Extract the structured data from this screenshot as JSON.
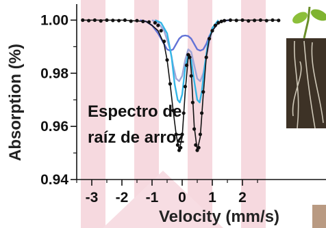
{
  "chart_data": {
    "type": "scatter",
    "xlabel": "Velocity (mm/s)",
    "ylabel": "Absorption (%)",
    "xlim": [
      -3.5,
      3.5
    ],
    "ylim": [
      0.94,
      1.005
    ],
    "x_ticks": [
      -3,
      -2,
      -1,
      0,
      1,
      2
    ],
    "y_ticks": [
      0.94,
      0.96,
      0.98,
      1.0
    ],
    "x_tick_labels": [
      "-3",
      "-2",
      "-1",
      "0",
      "1",
      "2"
    ],
    "y_tick_labels": [
      "0.94",
      "0.96",
      "0.98",
      "1.00"
    ],
    "annotation": [
      "Espectro de",
      "raíz de arroz"
    ],
    "legend": "none",
    "grid": false,
    "series": [
      {
        "kind": "points",
        "color": "#111111",
        "x": [
          -3.3,
          -3.1,
          -2.9,
          -2.7,
          -2.5,
          -2.3,
          -2.1,
          -1.9,
          -1.7,
          -1.5,
          -1.3,
          -1.1,
          -0.9,
          -0.8,
          -0.7,
          -0.6,
          -0.5,
          -0.4,
          -0.3,
          -0.2,
          -0.15,
          -0.1,
          -0.05,
          0.0,
          0.05,
          0.1,
          0.15,
          0.2,
          0.25,
          0.3,
          0.35,
          0.4,
          0.45,
          0.5,
          0.55,
          0.6,
          0.65,
          0.7,
          0.8,
          0.9,
          1.0,
          1.1,
          1.2,
          1.3,
          1.4,
          1.6,
          1.8,
          2.0,
          2.2,
          2.4,
          2.6,
          2.8,
          3.0,
          3.2
        ],
        "y": [
          1.0,
          0.9998,
          1.0,
          0.9997,
          1.0,
          0.9999,
          0.9998,
          1.0,
          0.9996,
          0.9998,
          0.9995,
          0.9993,
          0.999,
          0.998,
          0.996,
          0.992,
          0.985,
          0.976,
          0.966,
          0.957,
          0.953,
          0.951,
          0.952,
          0.957,
          0.965,
          0.975,
          0.983,
          0.987,
          0.986,
          0.979,
          0.969,
          0.959,
          0.953,
          0.951,
          0.952,
          0.957,
          0.965,
          0.973,
          0.986,
          0.993,
          0.996,
          0.998,
          0.999,
          0.9995,
          0.9998,
          1.0,
          0.9999,
          1.0,
          0.9997,
          0.9999,
          1.0,
          0.9998,
          1.0,
          0.9999
        ]
      },
      {
        "kind": "line",
        "color": "#6272d6",
        "x": [
          -1.4,
          -1.2,
          -1.0,
          -0.8,
          -0.6,
          -0.5,
          -0.4,
          -0.3,
          -0.2,
          -0.1,
          0.0,
          0.1,
          0.2,
          0.3,
          0.4,
          0.5,
          0.6,
          0.7,
          0.8,
          0.9,
          1.0,
          1.1,
          1.2,
          1.4,
          1.6
        ],
        "y": [
          1.0,
          0.9995,
          0.998,
          0.995,
          0.991,
          0.989,
          0.9885,
          0.989,
          0.991,
          0.993,
          0.994,
          0.9942,
          0.994,
          0.993,
          0.991,
          0.989,
          0.9885,
          0.989,
          0.991,
          0.994,
          0.996,
          0.998,
          0.999,
          0.9998,
          1.0
        ]
      },
      {
        "kind": "line",
        "color": "#9fa5d8",
        "x": [
          -1.0,
          -0.8,
          -0.6,
          -0.4,
          -0.3,
          -0.2,
          -0.1,
          0.0,
          0.1,
          0.2,
          0.3,
          0.4,
          0.5,
          0.6,
          0.7,
          0.8,
          0.9,
          1.0,
          1.2,
          1.4
        ],
        "y": [
          1.0,
          0.999,
          0.996,
          0.989,
          0.983,
          0.978,
          0.977,
          0.979,
          0.985,
          0.989,
          0.988,
          0.983,
          0.978,
          0.977,
          0.98,
          0.986,
          0.992,
          0.996,
          0.999,
          1.0
        ]
      },
      {
        "kind": "line",
        "color": "#35b6e6",
        "x": [
          -0.9,
          -0.7,
          -0.5,
          -0.35,
          -0.25,
          -0.15,
          -0.08,
          0.0,
          0.1,
          0.2,
          0.3,
          0.4,
          0.5,
          0.58,
          0.65,
          0.75,
          0.85,
          1.0,
          1.2
        ],
        "y": [
          1.0,
          0.999,
          0.995,
          0.986,
          0.976,
          0.97,
          0.969,
          0.972,
          0.982,
          0.987,
          0.985,
          0.977,
          0.97,
          0.969,
          0.973,
          0.983,
          0.991,
          0.997,
          1.0
        ]
      },
      {
        "kind": "line",
        "color": "#111111",
        "x": [
          -3.3,
          -2.0,
          -1.2,
          -1.0,
          -0.8,
          -0.6,
          -0.5,
          -0.4,
          -0.3,
          -0.2,
          -0.1,
          0.0,
          0.1,
          0.2,
          0.25,
          0.3,
          0.4,
          0.5,
          0.6,
          0.7,
          0.8,
          0.9,
          1.0,
          1.2,
          1.5,
          2.0,
          3.2
        ],
        "y": [
          1.0,
          1.0,
          0.9995,
          0.998,
          0.996,
          0.991,
          0.985,
          0.976,
          0.966,
          0.957,
          0.951,
          0.956,
          0.973,
          0.986,
          0.987,
          0.981,
          0.96,
          0.951,
          0.956,
          0.972,
          0.986,
          0.993,
          0.996,
          0.999,
          1.0,
          1.0,
          1.0
        ]
      }
    ]
  }
}
